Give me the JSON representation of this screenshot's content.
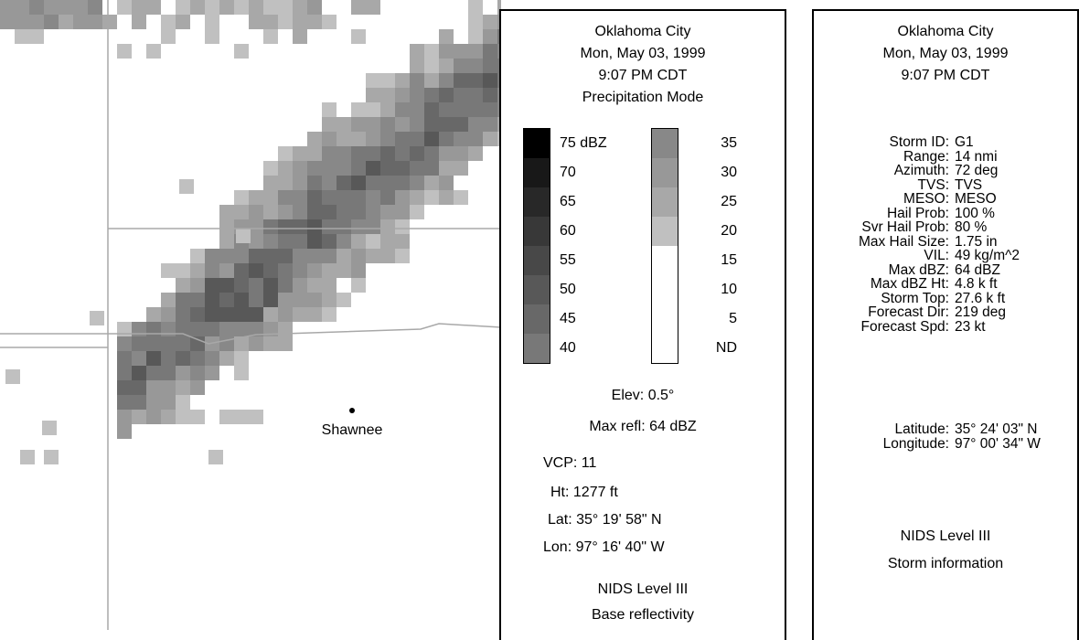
{
  "map": {
    "city_label": "Shawnee",
    "colors": {
      "background": "#ffffff",
      "boundary": "#a8a8a8",
      "city_dot": "#000000"
    }
  },
  "info_panel": {
    "header": [
      "Oklahoma City",
      "Mon, May 03, 1999",
      "9:07 PM CDT",
      "Precipitation Mode"
    ],
    "legend_left": [
      {
        "label": "75 dBZ",
        "color": "#000000"
      },
      {
        "label": "70",
        "color": "#181818"
      },
      {
        "label": "65",
        "color": "#282828"
      },
      {
        "label": "60",
        "color": "#383838"
      },
      {
        "label": "55",
        "color": "#484848"
      },
      {
        "label": "50",
        "color": "#585858"
      },
      {
        "label": "45",
        "color": "#686868"
      },
      {
        "label": "40",
        "color": "#787878"
      }
    ],
    "legend_right": [
      {
        "label": "35",
        "color": "#888888"
      },
      {
        "label": "30",
        "color": "#989898"
      },
      {
        "label": "25",
        "color": "#a8a8a8"
      },
      {
        "label": "20",
        "color": "#c0c0c0"
      },
      {
        "label": "15",
        "color": "#ffffff"
      },
      {
        "label": "10",
        "color": "#ffffff"
      },
      {
        "label": "5",
        "color": "#ffffff"
      },
      {
        "label": "ND",
        "color": "#ffffff"
      }
    ],
    "elev": "Elev: 0.5°",
    "max_refl": "Max refl: 64 dBZ",
    "vcp": "VCP: 11",
    "ht": "Ht: 1277 ft",
    "lat": "Lat: 35° 19' 58\" N",
    "lon": "Lon: 97° 16' 40\" W",
    "footer_1": "NIDS Level III",
    "footer_2": "Base reflectivity"
  },
  "storm_panel": {
    "header": [
      "Oklahoma City",
      "Mon, May 03, 1999",
      "9:07 PM CDT"
    ],
    "rows": [
      {
        "key": "Storm ID:",
        "value": "G1"
      },
      {
        "key": "Range:",
        "value": "14 nmi"
      },
      {
        "key": "Azimuth:",
        "value": "72 deg"
      },
      {
        "key": "TVS:",
        "value": "TVS"
      },
      {
        "key": "MESO:",
        "value": "MESO"
      },
      {
        "key": "Hail Prob:",
        "value": "100 %"
      },
      {
        "key": "Svr Hail Prob:",
        "value": "80 %"
      },
      {
        "key": "Max Hail Size:",
        "value": "1.75 in"
      },
      {
        "key": "VIL:",
        "value": "49 kg/m^2"
      },
      {
        "key": "Max dBZ:",
        "value": "64 dBZ"
      },
      {
        "key": "Max dBZ Ht:",
        "value": "4.8 k ft"
      },
      {
        "key": "Storm Top:",
        "value": "27.6 k ft"
      },
      {
        "key": "Forecast Dir:",
        "value": "219 deg"
      },
      {
        "key": "Forecast Spd:",
        "value": "23 kt"
      }
    ],
    "location": [
      {
        "key": "Latitude:",
        "value": "35° 24' 03\" N"
      },
      {
        "key": "Longitude:",
        "value": "97° 00' 34\" W"
      }
    ],
    "footer_1": "NIDS Level III",
    "footer_2": "Storm information"
  }
}
